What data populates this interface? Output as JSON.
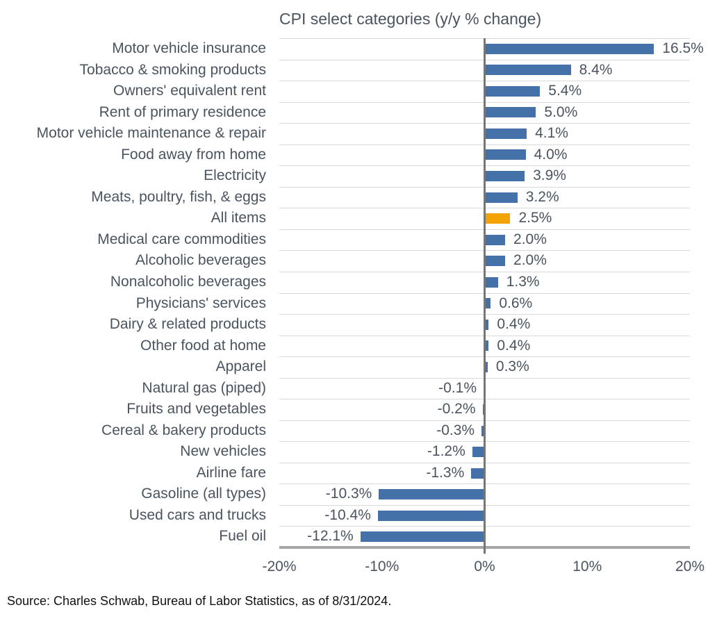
{
  "title": "CPI select categories (y/y % change)",
  "source": "Source: Charles Schwab, Bureau of Labor Statistics, as of 8/31/2024.",
  "colors": {
    "bar": "#4472a8",
    "highlight": "#f3a301",
    "gridline": "#d8d8d8",
    "axis": "#a6a6a6",
    "zero_line": "#767676",
    "text": "#4a545f"
  },
  "chart_data": {
    "type": "bar",
    "orientation": "horizontal",
    "title": "CPI select categories (y/y % change)",
    "xlabel": "",
    "ylabel": "",
    "xlim": [
      -20,
      20
    ],
    "x_ticks": [
      {
        "value": -20,
        "label": "-20%"
      },
      {
        "value": -10,
        "label": "-10%"
      },
      {
        "value": 0,
        "label": "0%"
      },
      {
        "value": 10,
        "label": "10%"
      },
      {
        "value": 20,
        "label": "20%"
      }
    ],
    "grid": true,
    "highlight_category": "All items",
    "categories": [
      "Motor vehicle insurance",
      "Tobacco & smoking products",
      "Owners' equivalent rent",
      "Rent of primary residence",
      "Motor vehicle maintenance & repair",
      "Food away from home",
      "Electricity",
      "Meats, poultry, fish, & eggs",
      "All items",
      "Medical care commodities",
      "Alcoholic beverages",
      "Nonalcoholic beverages",
      "Physicians' services",
      "Dairy & related products",
      "Other food at home",
      "Apparel",
      "Natural gas (piped)",
      "Fruits and vegetables",
      "Cereal & bakery products",
      "New vehicles",
      "Airline fare",
      "Gasoline (all types)",
      "Used cars and trucks",
      "Fuel oil"
    ],
    "values": [
      16.5,
      8.4,
      5.4,
      5.0,
      4.1,
      4.0,
      3.9,
      3.2,
      2.5,
      2.0,
      2.0,
      1.3,
      0.6,
      0.4,
      0.4,
      0.3,
      -0.1,
      -0.2,
      -0.3,
      -1.2,
      -1.3,
      -10.3,
      -10.4,
      -12.1
    ],
    "value_labels": [
      "16.5%",
      "8.4%",
      "5.4%",
      "5.0%",
      "4.1%",
      "4.0%",
      "3.9%",
      "3.2%",
      "2.5%",
      "2.0%",
      "2.0%",
      "1.3%",
      "0.6%",
      "0.4%",
      "0.4%",
      "0.3%",
      "-0.1%",
      "-0.2%",
      "-0.3%",
      "-1.2%",
      "-1.3%",
      "-10.3%",
      "-10.4%",
      "-12.1%"
    ]
  }
}
